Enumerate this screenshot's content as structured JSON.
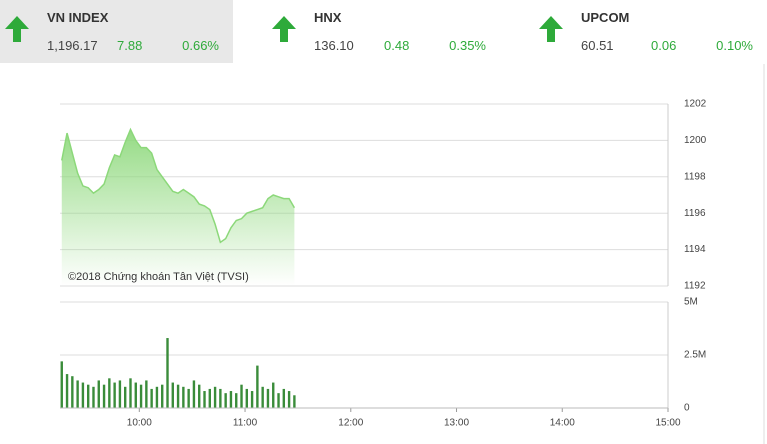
{
  "indices": [
    {
      "name": "VN INDEX",
      "value": "1,196.17",
      "change": "7.88",
      "pct": "0.66%"
    },
    {
      "name": "HNX",
      "value": "136.10",
      "change": "0.48",
      "pct": "0.35%"
    },
    {
      "name": "UPCOM",
      "value": "60.51",
      "change": "0.06",
      "pct": "0.10%"
    }
  ],
  "chart_data": [
    {
      "type": "area",
      "annotation": "©2018 Chứng khoán Tân Việt (TVSI)",
      "x": [
        "09:16",
        "09:19",
        "09:22",
        "09:25",
        "09:28",
        "09:31",
        "09:34",
        "09:37",
        "09:40",
        "09:43",
        "09:46",
        "09:49",
        "09:52",
        "09:55",
        "09:58",
        "10:01",
        "10:04",
        "10:07",
        "10:10",
        "10:13",
        "10:16",
        "10:19",
        "10:22",
        "10:25",
        "10:28",
        "10:31",
        "10:34",
        "10:37",
        "10:40",
        "10:43",
        "10:46",
        "10:49",
        "10:52",
        "10:55",
        "10:58",
        "11:01",
        "11:04",
        "11:07",
        "11:10",
        "11:13",
        "11:16",
        "11:19",
        "11:22",
        "11:25",
        "11:28"
      ],
      "values": [
        1198.9,
        1200.4,
        1199.3,
        1198.2,
        1197.5,
        1197.4,
        1197.1,
        1197.3,
        1197.6,
        1198.5,
        1199.2,
        1199.1,
        1199.9,
        1200.6,
        1200.0,
        1199.6,
        1199.6,
        1199.3,
        1198.4,
        1198.0,
        1197.6,
        1197.2,
        1197.1,
        1197.3,
        1197.1,
        1196.9,
        1196.5,
        1196.4,
        1196.2,
        1195.4,
        1194.4,
        1194.6,
        1195.2,
        1195.6,
        1195.7,
        1196.0,
        1196.1,
        1196.2,
        1196.3,
        1196.8,
        1197.0,
        1196.9,
        1196.8,
        1196.8,
        1196.3
      ],
      "color": "#8cd87a",
      "xlim": [
        "09:15",
        "15:00"
      ],
      "ylim": [
        1192,
        1202
      ],
      "yticks": [
        1192,
        1194,
        1196,
        1198,
        1200,
        1202
      ],
      "grid": true
    },
    {
      "type": "bar",
      "x": [
        "09:16",
        "09:19",
        "09:22",
        "09:25",
        "09:28",
        "09:31",
        "09:34",
        "09:37",
        "09:40",
        "09:43",
        "09:46",
        "09:49",
        "09:52",
        "09:55",
        "09:58",
        "10:01",
        "10:04",
        "10:07",
        "10:10",
        "10:13",
        "10:16",
        "10:19",
        "10:22",
        "10:25",
        "10:28",
        "10:31",
        "10:34",
        "10:37",
        "10:40",
        "10:43",
        "10:46",
        "10:49",
        "10:52",
        "10:55",
        "10:58",
        "11:01",
        "11:04",
        "11:07",
        "11:10",
        "11:13",
        "11:16",
        "11:19",
        "11:22",
        "11:25",
        "11:28"
      ],
      "values": [
        2200000,
        1600000,
        1500000,
        1300000,
        1200000,
        1100000,
        1000000,
        1300000,
        1100000,
        1400000,
        1200000,
        1300000,
        1000000,
        1400000,
        1200000,
        1100000,
        1300000,
        900000,
        1000000,
        1100000,
        3300000,
        1200000,
        1100000,
        1000000,
        900000,
        1300000,
        1100000,
        800000,
        900000,
        1000000,
        900000,
        700000,
        800000,
        700000,
        1100000,
        900000,
        800000,
        2000000,
        1000000,
        900000,
        1200000,
        700000,
        900000,
        800000,
        600000
      ],
      "color": "#3a8c3a",
      "xlim": [
        "09:15",
        "15:00"
      ],
      "ylim": [
        0,
        5000000
      ],
      "yticks": [
        0,
        {
          "value": 2500000,
          "label": "2.5M"
        },
        {
          "value": 5000000,
          "label": "5M"
        }
      ],
      "xticks": [
        "10:00",
        "11:00",
        "12:00",
        "13:00",
        "14:00",
        "15:00"
      ],
      "grid": true
    }
  ]
}
